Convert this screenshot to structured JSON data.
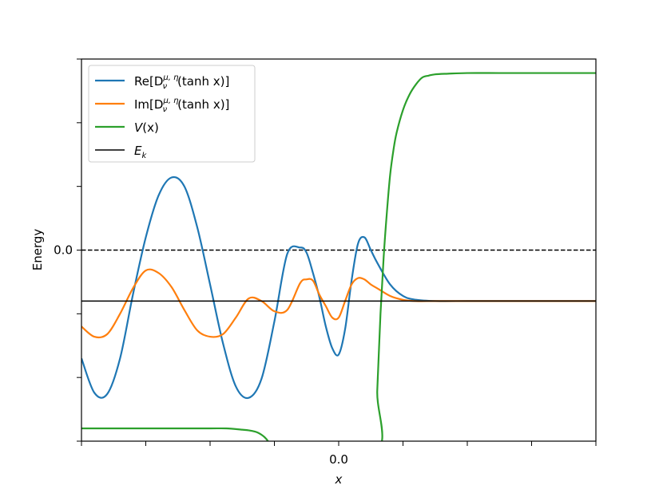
{
  "chart_data": {
    "type": "line",
    "title": "",
    "xlabel": "x",
    "ylabel": "Energy",
    "xlim": [
      -4.0,
      4.0
    ],
    "ylim": [
      -1.5,
      1.5
    ],
    "x_tick_values": [
      -4,
      -3,
      -2,
      -1,
      0,
      1,
      2,
      3,
      4
    ],
    "x_tick_labels": [
      "",
      "",
      "",
      "",
      "0.0",
      "",
      "",
      "",
      ""
    ],
    "y_tick_values": [
      -1.5,
      -1.0,
      -0.5,
      0.0,
      0.5,
      1.0,
      1.5
    ],
    "y_tick_labels": [
      "",
      "",
      "",
      "0.0",
      "",
      "",
      ""
    ],
    "grid": false,
    "legend_position": "top-left",
    "reference_lines": [
      {
        "name": "zero",
        "y": 0.0,
        "style": "dashed",
        "color": "#000000"
      }
    ],
    "series": [
      {
        "name": "Re[D_ν^{μ,η}(tanh x)]",
        "legend_main": "Re[D",
        "legend_sub": "ν",
        "legend_sup": "μ, η",
        "legend_tail": "(tanh x)]",
        "color": "#1f77b4",
        "x": [
          -4.0,
          -3.8,
          -3.6,
          -3.4,
          -3.2,
          -3.0,
          -2.8,
          -2.6,
          -2.4,
          -2.2,
          -2.0,
          -1.8,
          -1.6,
          -1.4,
          -1.2,
          -1.0,
          -0.8,
          -0.6,
          -0.5,
          -0.4,
          -0.3,
          -0.2,
          -0.1,
          0.0,
          0.1,
          0.2,
          0.3,
          0.4,
          0.5,
          0.6,
          0.8,
          1.0,
          1.2,
          1.5,
          2.0,
          2.5,
          3.0,
          3.5,
          4.0
        ],
        "y": [
          -0.85,
          -1.12,
          -1.13,
          -0.85,
          -0.35,
          0.1,
          0.43,
          0.57,
          0.5,
          0.18,
          -0.27,
          -0.73,
          -1.07,
          -1.16,
          -1.01,
          -0.56,
          -0.03,
          0.02,
          -0.02,
          -0.18,
          -0.37,
          -0.6,
          -0.77,
          -0.82,
          -0.62,
          -0.24,
          0.05,
          0.1,
          0.0,
          -0.1,
          -0.27,
          -0.36,
          -0.39,
          -0.4,
          -0.4,
          -0.4,
          -0.4,
          -0.4,
          -0.4
        ]
      },
      {
        "name": "Im[D_ν^{μ,η}(tanh x)]",
        "legend_main": "Im[D",
        "legend_sub": "ν",
        "legend_sup": "μ, η",
        "legend_tail": "(tanh x)]",
        "color": "#ff7f0e",
        "x": [
          -4.0,
          -3.8,
          -3.6,
          -3.4,
          -3.2,
          -3.0,
          -2.8,
          -2.6,
          -2.4,
          -2.2,
          -2.0,
          -1.8,
          -1.6,
          -1.4,
          -1.2,
          -1.0,
          -0.8,
          -0.6,
          -0.5,
          -0.4,
          -0.3,
          -0.2,
          -0.1,
          0.0,
          0.1,
          0.2,
          0.3,
          0.4,
          0.5,
          0.6,
          0.8,
          1.0,
          1.2,
          1.5,
          2.0,
          2.5,
          3.0,
          3.5,
          4.0
        ],
        "y": [
          -0.6,
          -0.68,
          -0.66,
          -0.5,
          -0.3,
          -0.16,
          -0.18,
          -0.29,
          -0.47,
          -0.63,
          -0.68,
          -0.66,
          -0.53,
          -0.38,
          -0.4,
          -0.48,
          -0.47,
          -0.26,
          -0.23,
          -0.24,
          -0.35,
          -0.44,
          -0.53,
          -0.53,
          -0.4,
          -0.27,
          -0.22,
          -0.23,
          -0.27,
          -0.3,
          -0.36,
          -0.39,
          -0.4,
          -0.4,
          -0.4,
          -0.4,
          -0.4,
          -0.4,
          -0.4
        ]
      },
      {
        "name": "V(x)",
        "legend_main": "V",
        "legend_sub": "",
        "legend_sup": "",
        "legend_tail": "(x)",
        "color": "#2ca02c",
        "x": [
          -4.0,
          -3.5,
          -3.0,
          -2.5,
          -2.0,
          -1.75,
          -1.5,
          -1.4,
          -1.3,
          -1.25,
          -1.2,
          -1.15,
          -1.1,
          -1.05,
          -1.0,
          0.55,
          0.6,
          0.65,
          0.7,
          0.75,
          0.8,
          0.85,
          0.9,
          1.0,
          1.1,
          1.2,
          1.3,
          1.4,
          1.5,
          1.7,
          2.0,
          2.5,
          3.0,
          3.5,
          4.0
        ],
        "y": [
          -1.4,
          -1.4,
          -1.4,
          -1.4,
          -1.4,
          -1.4,
          -1.41,
          -1.415,
          -1.425,
          -1.435,
          -1.45,
          -1.47,
          -1.5,
          -1.55,
          -1.6,
          -1.6,
          -1.1,
          -0.5,
          -0.05,
          0.3,
          0.59,
          0.78,
          0.92,
          1.1,
          1.22,
          1.3,
          1.355,
          1.37,
          1.38,
          1.385,
          1.39,
          1.39,
          1.39,
          1.39,
          1.39
        ]
      },
      {
        "name": "E_k",
        "legend_main": "E",
        "legend_sub": "k",
        "legend_sup": "",
        "legend_tail": "",
        "color": "#000000",
        "x": [
          -4.0,
          4.0
        ],
        "y": [
          -0.4,
          -0.4
        ]
      }
    ]
  }
}
